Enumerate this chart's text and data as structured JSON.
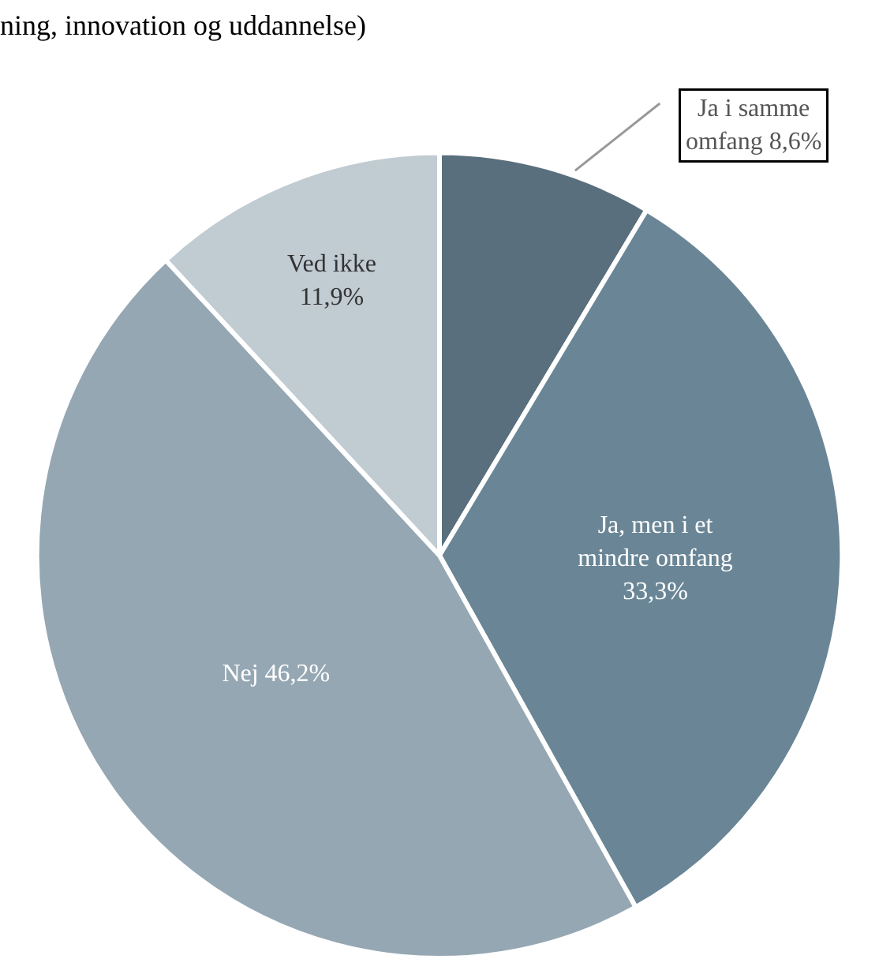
{
  "chart_data": {
    "type": "pie",
    "title": "ning, innovation og uddannelse)",
    "categories": [
      "Ja i samme omfang",
      "Ja, men i et mindre omfang",
      "Nej",
      "Ved ikke"
    ],
    "values": [
      8.6,
      33.3,
      46.2,
      11.9
    ],
    "value_labels": [
      "8,6%",
      "33,3%",
      "46,2%",
      "11,9%"
    ],
    "colors": [
      "#596f7d",
      "#6a8696",
      "#95a7b3",
      "#c0cbd2"
    ],
    "legend": false
  }
}
